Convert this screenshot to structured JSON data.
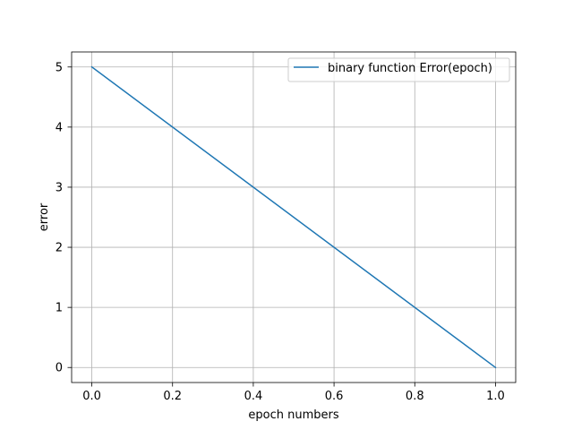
{
  "chart_data": {
    "type": "line",
    "xlabel": "epoch numbers",
    "ylabel": "error",
    "xlim": [
      -0.05,
      1.05
    ],
    "ylim": [
      -0.25,
      5.25
    ],
    "xticks": [
      0.0,
      0.2,
      0.4,
      0.6,
      0.8,
      1.0
    ],
    "xtick_labels": [
      "0.0",
      "0.2",
      "0.4",
      "0.6",
      "0.8",
      "1.0"
    ],
    "yticks": [
      0,
      1,
      2,
      3,
      4,
      5
    ],
    "ytick_labels": [
      "0",
      "1",
      "2",
      "3",
      "4",
      "5"
    ],
    "grid": true,
    "legend_position": "top-right",
    "series": [
      {
        "name": "binary function Error(epoch)",
        "color": "#1f77b4",
        "x": [
          0.0,
          1.0
        ],
        "y": [
          5,
          0
        ]
      }
    ]
  }
}
